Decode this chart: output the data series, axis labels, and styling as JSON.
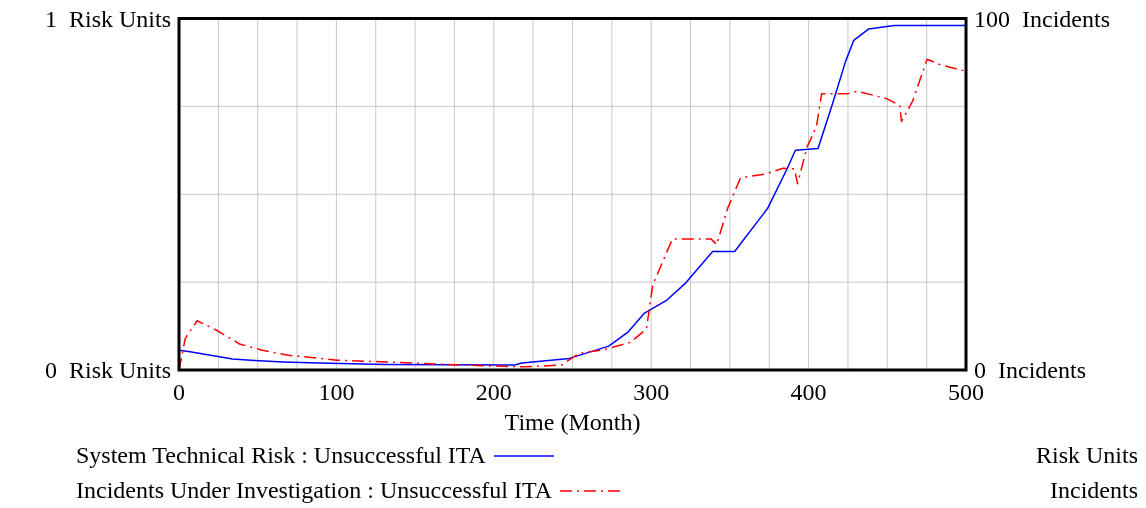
{
  "chart_data": {
    "type": "line",
    "xlabel": "Time (Month)",
    "annotations": [
      "Risk Units",
      "Incidents"
    ],
    "xlim": [
      0,
      500
    ],
    "xticks": [
      0,
      {
        "value": 25,
        "label": null
      },
      100,
      {
        "value": 50,
        "label": null
      },
      {
        "value": 75,
        "label": null
      },
      {
        "value": 125,
        "label": null
      },
      {
        "value": 150,
        "label": null
      },
      {
        "value": 175,
        "label": null
      },
      200,
      {
        "value": 225,
        "label": null
      },
      {
        "value": 250,
        "label": null
      },
      {
        "value": 275,
        "label": null
      },
      300,
      {
        "value": 325,
        "label": null
      },
      {
        "value": 350,
        "label": null
      },
      {
        "value": 375,
        "label": null
      },
      400,
      {
        "value": 425,
        "label": null
      },
      {
        "value": 450,
        "label": null
      },
      {
        "value": 475,
        "label": null
      },
      500
    ],
    "ylim": [
      0,
      1
    ],
    "yticks": [
      {
        "value": 0,
        "label": "0  Risk Units"
      },
      {
        "value": 0.25,
        "label": null
      },
      {
        "value": 0.5,
        "label": null
      },
      {
        "value": 0.75,
        "label": null
      },
      {
        "value": 1,
        "label": "1  Risk Units"
      }
    ],
    "y2lim": [
      0,
      100
    ],
    "y2ticks": [
      {
        "value": 0,
        "label": "0  Incidents"
      },
      {
        "value": 100,
        "label": "100  Incidents"
      }
    ],
    "grid": true,
    "legend": "bottom",
    "series": [
      {
        "name": "System Technical Risk : Unsuccessful ITA",
        "color": "#0000ff",
        "axis": "y",
        "line_style": "solid",
        "x": [
          0,
          7,
          20,
          34,
          48,
          66,
          89,
          131,
          213,
          218,
          248,
          273,
          285,
          295.5,
          310,
          322,
          339,
          353,
          374,
          386.5,
          391.6,
          406,
          415.3,
          423.5,
          428.7,
          438,
          454.5,
          500
        ],
        "values": [
          0.056,
          0.052,
          0.042,
          0.031,
          0.027,
          0.023,
          0.02,
          0.016,
          0.014,
          0.02,
          0.033,
          0.068,
          0.107,
          0.161,
          0.199,
          0.248,
          0.337,
          0.337,
          0.46,
          0.574,
          0.625,
          0.63,
          0.759,
          0.878,
          0.938,
          0.97,
          0.98,
          0.98
        ]
      },
      {
        "name": "Incidents Under Investigation : Unsuccessful ITA",
        "color": "#ff0000",
        "axis": "y2",
        "line_style": "dashdot",
        "x": [
          0,
          4,
          11.5,
          24,
          38.5,
          53,
          69.5,
          100.5,
          131,
          152,
          193.5,
          219,
          243,
          254,
          270.5,
          287,
          297,
          301,
          313.5,
          338,
          341.6,
          348.6,
          356.8,
          373,
          383.7,
          391,
          393,
          399,
          405,
          408.3,
          424.7,
          431,
          449.6,
          457.9,
          459,
          466,
          475.3,
          484.5,
          500
        ],
        "values": [
          0,
          9,
          14,
          11.3,
          7.4,
          5.6,
          4.2,
          2.8,
          2.3,
          1.9,
          1.2,
          0.9,
          1.4,
          4.7,
          5.8,
          7.9,
          11.7,
          24.2,
          37.3,
          37.3,
          35.7,
          46,
          54.7,
          55.8,
          57.4,
          57.2,
          53,
          63.4,
          69.3,
          78.6,
          78.6,
          79.3,
          77.2,
          75.3,
          70.7,
          76.4,
          88.4,
          86.7,
          85
        ]
      }
    ]
  }
}
